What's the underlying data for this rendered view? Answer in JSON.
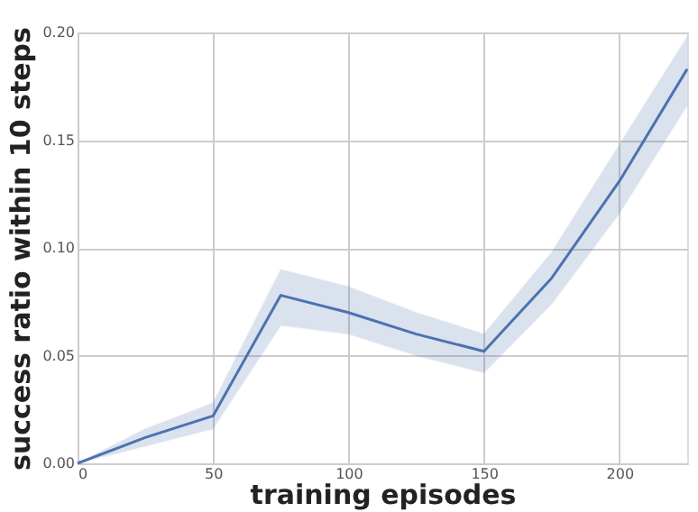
{
  "chart_data": {
    "type": "line",
    "xlabel": "training episodes",
    "ylabel": "success ratio within 10 steps",
    "x": [
      0,
      25,
      50,
      75,
      100,
      125,
      150,
      175,
      200,
      225
    ],
    "series": [
      {
        "color": "#4c72b0",
        "values": [
          0,
          0.012,
          0.022,
          0.078,
          0.07,
          0.06,
          0.052,
          0.086,
          0.131,
          0.183
        ],
        "lower": [
          0,
          0.008,
          0.016,
          0.064,
          0.06,
          0.05,
          0.042,
          0.074,
          0.116,
          0.166
        ],
        "upper": [
          0,
          0.016,
          0.028,
          0.09,
          0.082,
          0.07,
          0.06,
          0.098,
          0.148,
          0.198
        ]
      }
    ],
    "xlim": [
      0,
      225
    ],
    "xticks": [
      0,
      50,
      100,
      150,
      200
    ],
    "ylim": [
      0,
      0.2
    ],
    "yticks": [
      {
        "value": 0,
        "label": "0.00"
      },
      {
        "value": 0.05,
        "label": "0.05"
      },
      {
        "value": 0.1,
        "label": "0.10"
      },
      {
        "value": 0.15,
        "label": "0.15"
      },
      {
        "value": 0.2,
        "label": "0.20"
      }
    ],
    "grid": true,
    "marker": "none",
    "line_style": "solid"
  }
}
